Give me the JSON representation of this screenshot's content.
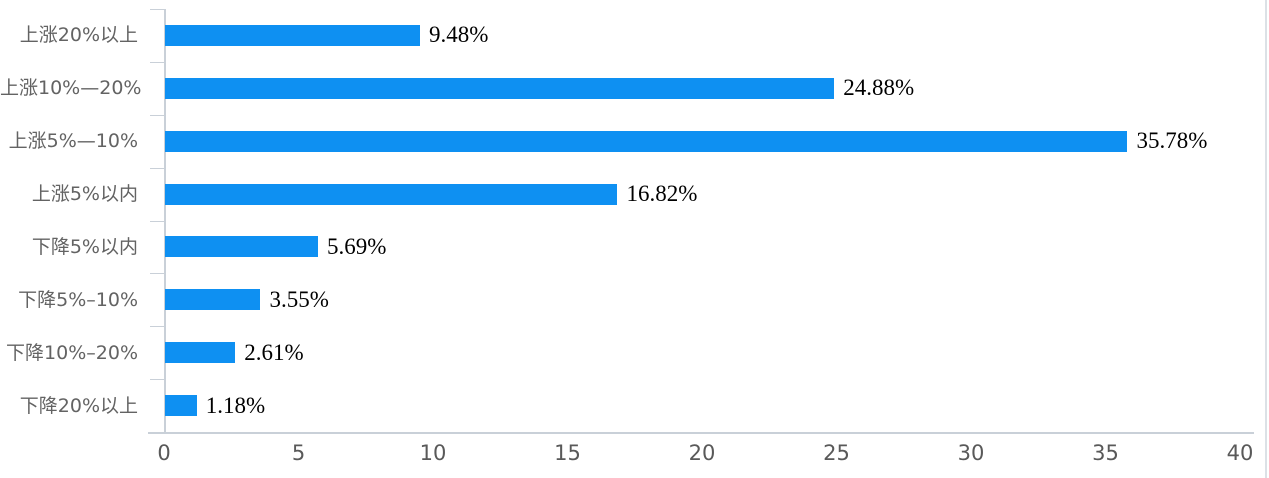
{
  "chart_data": {
    "type": "bar",
    "orientation": "horizontal",
    "title": "",
    "categories": [
      "上涨20%以上",
      "上涨10%—20%",
      "上涨5%—10%",
      "上涨5%以内",
      "下降5%以内",
      "下降5%–10%",
      "下降10%–20%",
      "下降20%以上"
    ],
    "values": [
      9.48,
      24.88,
      35.78,
      16.82,
      5.69,
      3.55,
      2.61,
      1.18
    ],
    "data_labels": [
      "9.48%",
      "24.88%",
      "35.78%",
      "16.82%",
      "5.69%",
      "3.55%",
      "2.61%",
      "1.18%"
    ],
    "x_ticks": [
      "0",
      "5",
      "10",
      "15",
      "20",
      "25",
      "30",
      "35",
      "40"
    ],
    "xlim": [
      0,
      40
    ],
    "xlabel": "",
    "ylabel": "",
    "grid": false,
    "legend": "none",
    "bar_color": "#0e90f2",
    "axis_color": "#c9d0d8",
    "category_label_color": "#636363",
    "tick_label_color": "#595959",
    "value_label_color": "#000000"
  }
}
